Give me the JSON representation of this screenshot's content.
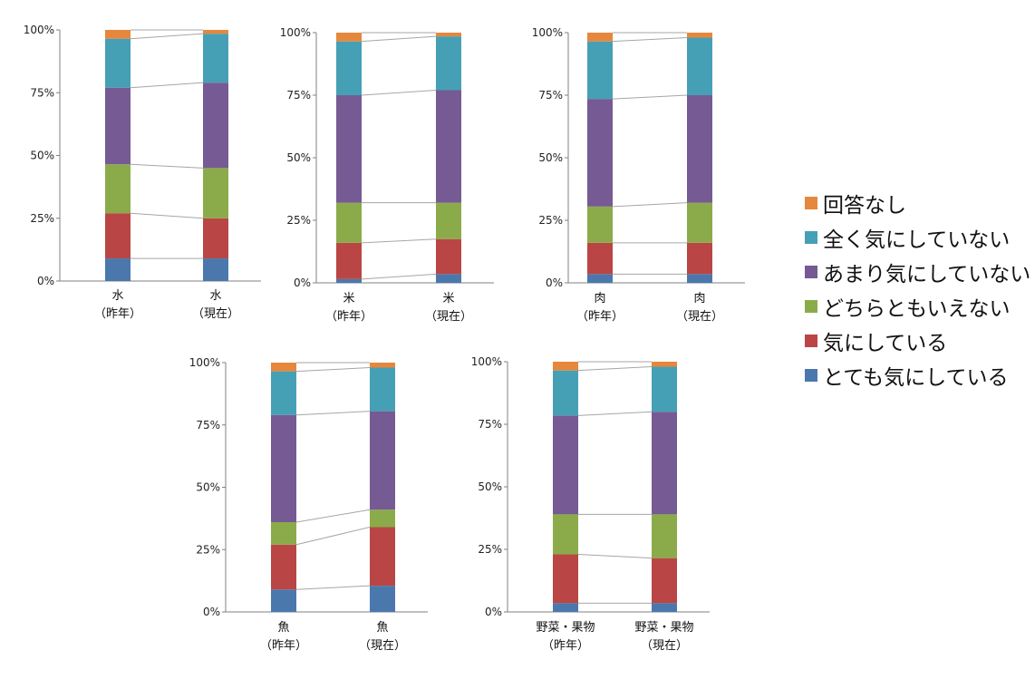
{
  "colors": {
    "none": "#e5873d",
    "not_at_all": "#46a0b5",
    "not_much": "#765a93",
    "neutral": "#8bab4a",
    "somewhat": "#b94645",
    "very": "#4a78ad",
    "axis": "#808080",
    "connector": "#a6a6a6"
  },
  "legend": [
    {
      "label": "回答なし",
      "color_key": "none"
    },
    {
      "label": "全く気にしていない",
      "color_key": "not_at_all"
    },
    {
      "label": "あまり気にしていない",
      "color_key": "not_much"
    },
    {
      "label": "どちらともいえない",
      "color_key": "neutral"
    },
    {
      "label": "気にしている",
      "color_key": "somewhat"
    },
    {
      "label": "とても気にしている",
      "color_key": "very"
    }
  ],
  "chart_data": [
    {
      "type": "bar",
      "stacked": "percent",
      "categories": [
        "水\n（昨年）",
        "水\n（現在）"
      ],
      "yticks": [
        "0%",
        "25%",
        "50%",
        "75%",
        "100%"
      ],
      "ylim": [
        0,
        100
      ],
      "series": [
        {
          "name": "とても気にしている",
          "values": [
            9,
            9
          ]
        },
        {
          "name": "気にしている",
          "values": [
            18,
            16
          ]
        },
        {
          "name": "どちらともいえない",
          "values": [
            19.5,
            20
          ]
        },
        {
          "name": "あまり気にしていない",
          "values": [
            30.5,
            34
          ]
        },
        {
          "name": "全く気にしていない",
          "values": [
            19.5,
            19.5
          ]
        },
        {
          "name": "回答なし",
          "values": [
            3.5,
            1.5
          ]
        }
      ]
    },
    {
      "type": "bar",
      "stacked": "percent",
      "categories": [
        "米\n（昨年）",
        "米\n（現在）"
      ],
      "yticks": [
        "0%",
        "25%",
        "50%",
        "75%",
        "100%"
      ],
      "ylim": [
        0,
        100
      ],
      "series": [
        {
          "name": "とても気にしている",
          "values": [
            1.5,
            3.5
          ]
        },
        {
          "name": "気にしている",
          "values": [
            14.5,
            14
          ]
        },
        {
          "name": "どちらともいえない",
          "values": [
            16,
            14.5
          ]
        },
        {
          "name": "あまり気にしていない",
          "values": [
            43,
            45
          ]
        },
        {
          "name": "全く気にしていない",
          "values": [
            21.5,
            21.5
          ]
        },
        {
          "name": "回答なし",
          "values": [
            3.5,
            1.5
          ]
        }
      ]
    },
    {
      "type": "bar",
      "stacked": "percent",
      "categories": [
        "肉\n（昨年）",
        "肉\n（現在）"
      ],
      "yticks": [
        "0%",
        "25%",
        "50%",
        "75%",
        "100%"
      ],
      "ylim": [
        0,
        100
      ],
      "series": [
        {
          "name": "とても気にしている",
          "values": [
            3.5,
            3.5
          ]
        },
        {
          "name": "気にしている",
          "values": [
            12.5,
            12.5
          ]
        },
        {
          "name": "どちらともいえない",
          "values": [
            14.5,
            16
          ]
        },
        {
          "name": "あまり気にしていない",
          "values": [
            43,
            43
          ]
        },
        {
          "name": "全く気にしていない",
          "values": [
            23,
            23
          ]
        },
        {
          "name": "回答なし",
          "values": [
            3.5,
            2
          ]
        }
      ]
    },
    {
      "type": "bar",
      "stacked": "percent",
      "categories": [
        "魚\n（昨年）",
        "魚\n（現在）"
      ],
      "yticks": [
        "0%",
        "25%",
        "50%",
        "75%",
        "100%"
      ],
      "ylim": [
        0,
        100
      ],
      "series": [
        {
          "name": "とても気にしている",
          "values": [
            9,
            10.5
          ]
        },
        {
          "name": "気にしている",
          "values": [
            18,
            23.5
          ]
        },
        {
          "name": "どちらともいえない",
          "values": [
            9,
            7
          ]
        },
        {
          "name": "あまり気にしていない",
          "values": [
            43,
            39.5
          ]
        },
        {
          "name": "全く気にしていない",
          "values": [
            17.5,
            17.5
          ]
        },
        {
          "name": "回答なし",
          "values": [
            3.5,
            2
          ]
        }
      ]
    },
    {
      "type": "bar",
      "stacked": "percent",
      "categories": [
        "野菜・果物\n（昨年）",
        "野菜・果物\n（現在）"
      ],
      "yticks": [
        "0%",
        "25%",
        "50%",
        "75%",
        "100%"
      ],
      "ylim": [
        0,
        100
      ],
      "series": [
        {
          "name": "とても気にしている",
          "values": [
            3.5,
            3.5
          ]
        },
        {
          "name": "気にしている",
          "values": [
            19.5,
            18
          ]
        },
        {
          "name": "どちらともいえない",
          "values": [
            16,
            17.5
          ]
        },
        {
          "name": "あまり気にしていない",
          "values": [
            39.5,
            41
          ]
        },
        {
          "name": "全く気にしていない",
          "values": [
            18,
            18
          ]
        },
        {
          "name": "回答なし",
          "values": [
            3.5,
            2
          ]
        }
      ]
    }
  ]
}
